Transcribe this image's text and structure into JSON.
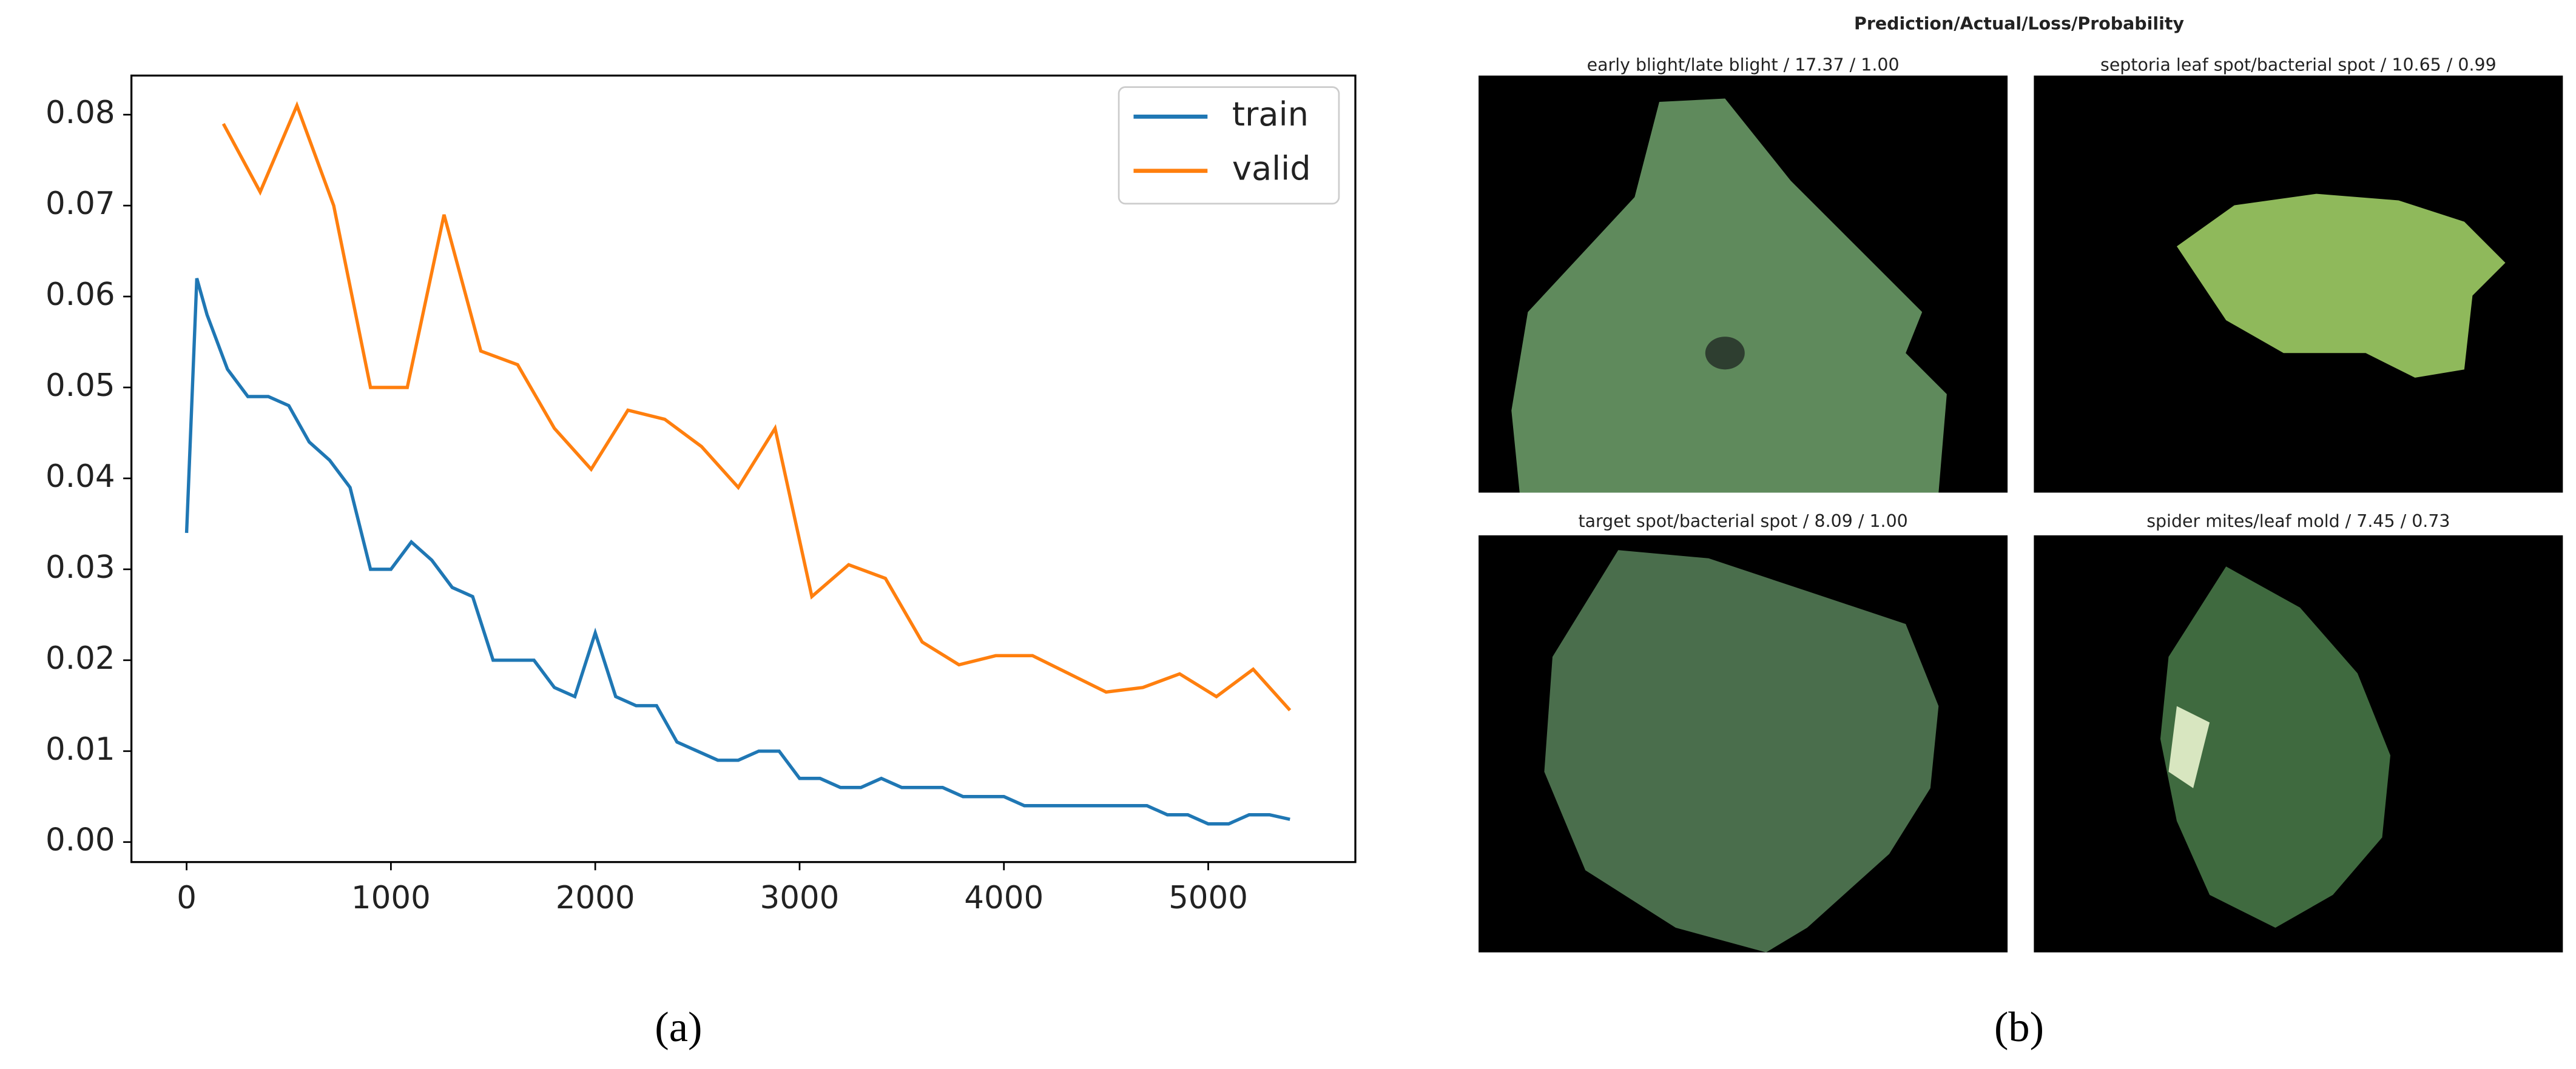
{
  "chart_data": {
    "type": "line",
    "xlim": [
      -270,
      5720
    ],
    "ylim": [
      -0.0022,
      0.0843
    ],
    "xticks": [
      0,
      1000,
      2000,
      3000,
      4000,
      5000
    ],
    "yticks": [
      {
        "value": 0,
        "label": "0.00"
      },
      {
        "value": 0.01,
        "label": "0.01"
      },
      {
        "value": 0.02,
        "label": "0.02"
      },
      {
        "value": 0.03,
        "label": "0.03"
      },
      {
        "value": 0.04,
        "label": "0.04"
      },
      {
        "value": 0.05,
        "label": "0.05"
      },
      {
        "value": 0.06,
        "label": "0.06"
      },
      {
        "value": 0.07,
        "label": "0.07"
      },
      {
        "value": 0.08,
        "label": "0.08"
      }
    ],
    "legend": "upper right",
    "series": [
      {
        "name": "train",
        "color": "#1f77b4",
        "x": [
          0,
          50,
          100,
          200,
          300,
          400,
          500,
          600,
          700,
          800,
          900,
          1000,
          1100,
          1200,
          1300,
          1400,
          1500,
          1600,
          1700,
          1800,
          1900,
          2000,
          2100,
          2200,
          2300,
          2400,
          2500,
          2600,
          2700,
          2800,
          2900,
          3000,
          3100,
          3200,
          3300,
          3400,
          3500,
          3600,
          3700,
          3800,
          3900,
          4000,
          4100,
          4200,
          4300,
          4400,
          4500,
          4600,
          4700,
          4800,
          4900,
          5000,
          5100,
          5200,
          5300,
          5400
        ],
        "values": [
          0.034,
          0.062,
          0.058,
          0.052,
          0.049,
          0.049,
          0.048,
          0.044,
          0.042,
          0.039,
          0.03,
          0.03,
          0.033,
          0.031,
          0.028,
          0.027,
          0.02,
          0.02,
          0.02,
          0.017,
          0.016,
          0.023,
          0.016,
          0.015,
          0.015,
          0.011,
          0.01,
          0.009,
          0.009,
          0.01,
          0.01,
          0.007,
          0.007,
          0.006,
          0.006,
          0.007,
          0.006,
          0.006,
          0.006,
          0.005,
          0.005,
          0.005,
          0.004,
          0.004,
          0.004,
          0.004,
          0.004,
          0.004,
          0.004,
          0.003,
          0.003,
          0.002,
          0.002,
          0.003,
          0.003,
          0.0025
        ]
      },
      {
        "name": "valid",
        "color": "#ff7f0e",
        "x": [
          180,
          360,
          540,
          720,
          900,
          1080,
          1260,
          1440,
          1620,
          1800,
          1980,
          2160,
          2340,
          2520,
          2700,
          2880,
          3060,
          3240,
          3420,
          3600,
          3780,
          3960,
          4140,
          4320,
          4500,
          4680,
          4860,
          5040,
          5220,
          5400
        ],
        "values": [
          0.079,
          0.0715,
          0.081,
          0.07,
          0.05,
          0.05,
          0.069,
          0.054,
          0.0525,
          0.0455,
          0.041,
          0.0475,
          0.0465,
          0.0435,
          0.039,
          0.0455,
          0.027,
          0.0305,
          0.029,
          0.022,
          0.0195,
          0.0205,
          0.0205,
          0.0185,
          0.0165,
          0.017,
          0.0185,
          0.016,
          0.019,
          0.0145
        ]
      }
    ]
  },
  "figure_b": {
    "title": "Prediction/Actual/Loss/Probability",
    "panels": [
      {
        "caption": "early blight/late blight / 17.37 / 1.00"
      },
      {
        "caption": "septoria leaf spot/bacterial spot / 10.65 / 0.99"
      },
      {
        "caption": "target spot/bacterial spot / 8.09 / 1.00"
      },
      {
        "caption": "spider mites/leaf mold / 7.45 / 0.73"
      }
    ]
  },
  "panel_labels": [
    "(a)",
    "(b)"
  ]
}
